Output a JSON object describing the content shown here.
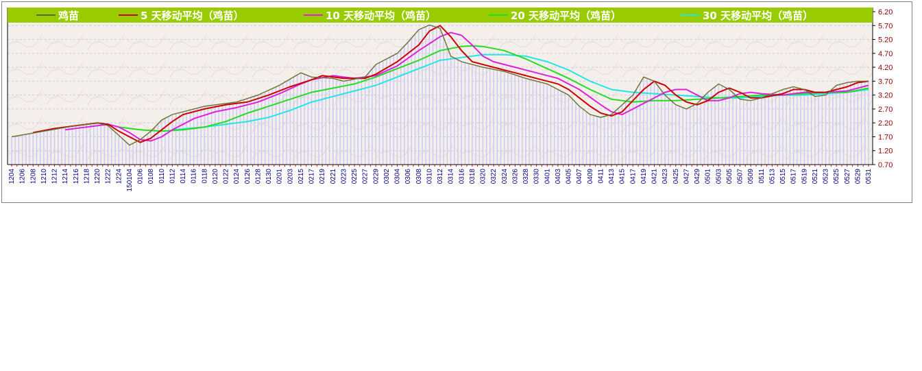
{
  "chart_data": {
    "type": "line",
    "colors": {
      "legend_bg": "#99cc00",
      "plot_bg": "#f4efea",
      "bar_fill": "#c8c8f4",
      "price_line": "#556b2f",
      "ma5": "#cc0000",
      "ma10": "#dd22dd",
      "ma20": "#22dd22",
      "ma30": "#22e6e6",
      "axis_text": "#8b0000",
      "xtick_text": "#000080"
    },
    "legend": [
      {
        "label": "鸡苗",
        "color": "#556b2f"
      },
      {
        "label": "5 天移动平均（鸡苗）",
        "color": "#cc0000"
      },
      {
        "label": "10 天移动平均（鸡苗）",
        "color": "#dd22dd"
      },
      {
        "label": "20 天移动平均（鸡苗）",
        "color": "#22dd22"
      },
      {
        "label": "30 天移动平均（鸡苗）",
        "color": "#22e6e6"
      }
    ],
    "y_ticks": [
      "6.20",
      "5.70",
      "5.20",
      "4.70",
      "4.20",
      "3.70",
      "3.20",
      "2.70",
      "2.20",
      "1.70",
      "1.20",
      "0.70"
    ],
    "ylim": [
      0.7,
      6.2
    ],
    "x_labels": [
      "1204",
      "1206",
      "1208",
      "1210",
      "1212",
      "1214",
      "1216",
      "1218",
      "1220",
      "1222",
      "1224",
      "150104",
      "0106",
      "0108",
      "0110",
      "0112",
      "0114",
      "0116",
      "0118",
      "0120",
      "0122",
      "0124",
      "0126",
      "0128",
      "0130",
      "0201",
      "0203",
      "0215",
      "0217",
      "0219",
      "0221",
      "0223",
      "0225",
      "0227",
      "0229",
      "0302",
      "0304",
      "0306",
      "0308",
      "0310",
      "0312",
      "0314",
      "0316",
      "0318",
      "0320",
      "0322",
      "0324",
      "0326",
      "0328",
      "0330",
      "0401",
      "0403",
      "0405",
      "0407",
      "0409",
      "0411",
      "0413",
      "0415",
      "0417",
      "0419",
      "0421",
      "0423",
      "0425",
      "0427",
      "0429",
      "0501",
      "0503",
      "0505",
      "0507",
      "0509",
      "0511",
      "0513",
      "0515",
      "0517",
      "0519",
      "0521",
      "0523",
      "0525",
      "0527",
      "0529",
      "0531"
    ],
    "series": [
      {
        "name": "鸡苗",
        "key": "price",
        "points": [
          [
            0,
            1.7
          ],
          [
            3,
            1.9
          ],
          [
            6,
            2.1
          ],
          [
            8,
            2.2
          ],
          [
            9,
            2.1
          ],
          [
            10,
            1.75
          ],
          [
            11,
            1.4
          ],
          [
            12,
            1.6
          ],
          [
            13,
            1.9
          ],
          [
            14,
            2.3
          ],
          [
            15,
            2.5
          ],
          [
            16,
            2.6
          ],
          [
            18,
            2.8
          ],
          [
            21,
            2.95
          ],
          [
            23,
            3.2
          ],
          [
            25,
            3.55
          ],
          [
            27,
            4.0
          ],
          [
            28,
            3.85
          ],
          [
            30,
            3.8
          ],
          [
            31,
            3.7
          ],
          [
            33,
            3.85
          ],
          [
            34,
            4.3
          ],
          [
            36,
            4.7
          ],
          [
            37,
            5.1
          ],
          [
            38,
            5.55
          ],
          [
            39,
            5.72
          ],
          [
            40,
            5.6
          ],
          [
            41,
            4.6
          ],
          [
            42,
            4.4
          ],
          [
            44,
            4.2
          ],
          [
            46,
            4.05
          ],
          [
            48,
            3.8
          ],
          [
            50,
            3.6
          ],
          [
            52,
            3.2
          ],
          [
            53,
            2.8
          ],
          [
            54,
            2.5
          ],
          [
            55,
            2.4
          ],
          [
            56,
            2.5
          ],
          [
            58,
            3.2
          ],
          [
            59,
            3.85
          ],
          [
            60,
            3.7
          ],
          [
            61,
            3.2
          ],
          [
            62,
            2.85
          ],
          [
            63,
            2.7
          ],
          [
            64,
            2.9
          ],
          [
            65,
            3.3
          ],
          [
            66,
            3.6
          ],
          [
            67,
            3.4
          ],
          [
            68,
            3.05
          ],
          [
            69,
            3.0
          ],
          [
            70,
            3.1
          ],
          [
            72,
            3.4
          ],
          [
            73,
            3.5
          ],
          [
            74,
            3.4
          ],
          [
            75,
            3.15
          ],
          [
            76,
            3.2
          ],
          [
            77,
            3.55
          ],
          [
            78,
            3.65
          ],
          [
            79,
            3.7
          ],
          [
            80,
            3.7
          ]
        ]
      },
      {
        "name": "5 天移动平均（鸡苗）",
        "key": "ma5",
        "points": [
          [
            2,
            1.85
          ],
          [
            4,
            2.0
          ],
          [
            6,
            2.1
          ],
          [
            8,
            2.2
          ],
          [
            9,
            2.15
          ],
          [
            10,
            1.9
          ],
          [
            11,
            1.7
          ],
          [
            12,
            1.5
          ],
          [
            13,
            1.65
          ],
          [
            14,
            1.95
          ],
          [
            15,
            2.25
          ],
          [
            16,
            2.5
          ],
          [
            18,
            2.7
          ],
          [
            20,
            2.85
          ],
          [
            22,
            2.95
          ],
          [
            24,
            3.2
          ],
          [
            26,
            3.5
          ],
          [
            28,
            3.75
          ],
          [
            29,
            3.9
          ],
          [
            31,
            3.8
          ],
          [
            33,
            3.8
          ],
          [
            34,
            3.95
          ],
          [
            36,
            4.4
          ],
          [
            38,
            5.0
          ],
          [
            39,
            5.5
          ],
          [
            40,
            5.7
          ],
          [
            41,
            5.3
          ],
          [
            42,
            4.8
          ],
          [
            43,
            4.4
          ],
          [
            45,
            4.2
          ],
          [
            47,
            4.0
          ],
          [
            49,
            3.8
          ],
          [
            51,
            3.6
          ],
          [
            52,
            3.4
          ],
          [
            53,
            3.1
          ],
          [
            54,
            2.8
          ],
          [
            55,
            2.55
          ],
          [
            56,
            2.45
          ],
          [
            57,
            2.6
          ],
          [
            58,
            3.0
          ],
          [
            59,
            3.4
          ],
          [
            60,
            3.7
          ],
          [
            61,
            3.55
          ],
          [
            62,
            3.2
          ],
          [
            63,
            2.95
          ],
          [
            64,
            2.85
          ],
          [
            65,
            3.0
          ],
          [
            66,
            3.3
          ],
          [
            67,
            3.45
          ],
          [
            68,
            3.3
          ],
          [
            69,
            3.1
          ],
          [
            70,
            3.1
          ],
          [
            72,
            3.25
          ],
          [
            73,
            3.4
          ],
          [
            74,
            3.4
          ],
          [
            75,
            3.3
          ],
          [
            76,
            3.3
          ],
          [
            78,
            3.5
          ],
          [
            79,
            3.65
          ],
          [
            80,
            3.7
          ]
        ]
      },
      {
        "name": "10 天移动平均（鸡苗）",
        "key": "ma10",
        "points": [
          [
            5,
            1.95
          ],
          [
            7,
            2.05
          ],
          [
            9,
            2.15
          ],
          [
            10,
            2.05
          ],
          [
            11,
            1.85
          ],
          [
            12,
            1.6
          ],
          [
            13,
            1.55
          ],
          [
            14,
            1.7
          ],
          [
            15,
            1.95
          ],
          [
            17,
            2.35
          ],
          [
            19,
            2.6
          ],
          [
            21,
            2.75
          ],
          [
            23,
            2.95
          ],
          [
            25,
            3.25
          ],
          [
            27,
            3.6
          ],
          [
            28,
            3.75
          ],
          [
            30,
            3.9
          ],
          [
            32,
            3.8
          ],
          [
            34,
            3.9
          ],
          [
            36,
            4.25
          ],
          [
            38,
            4.8
          ],
          [
            40,
            5.3
          ],
          [
            41,
            5.45
          ],
          [
            42,
            5.35
          ],
          [
            43,
            5.0
          ],
          [
            44,
            4.6
          ],
          [
            45,
            4.4
          ],
          [
            47,
            4.2
          ],
          [
            49,
            4.0
          ],
          [
            51,
            3.8
          ],
          [
            53,
            3.4
          ],
          [
            55,
            2.85
          ],
          [
            56,
            2.6
          ],
          [
            57,
            2.5
          ],
          [
            58,
            2.7
          ],
          [
            59,
            2.9
          ],
          [
            60,
            3.1
          ],
          [
            61,
            3.3
          ],
          [
            62,
            3.4
          ],
          [
            63,
            3.4
          ],
          [
            64,
            3.2
          ],
          [
            65,
            3.0
          ],
          [
            66,
            3.0
          ],
          [
            67,
            3.1
          ],
          [
            68,
            3.25
          ],
          [
            69,
            3.3
          ],
          [
            70,
            3.25
          ],
          [
            72,
            3.2
          ],
          [
            74,
            3.3
          ],
          [
            76,
            3.3
          ],
          [
            78,
            3.35
          ],
          [
            80,
            3.55
          ]
        ]
      },
      {
        "name": "20 天移动平均（鸡苗）",
        "key": "ma20",
        "points": [
          [
            10,
            2.05
          ],
          [
            12,
            1.95
          ],
          [
            14,
            1.9
          ],
          [
            16,
            1.95
          ],
          [
            18,
            2.05
          ],
          [
            20,
            2.25
          ],
          [
            22,
            2.55
          ],
          [
            24,
            2.8
          ],
          [
            26,
            3.05
          ],
          [
            28,
            3.3
          ],
          [
            30,
            3.45
          ],
          [
            32,
            3.6
          ],
          [
            34,
            3.85
          ],
          [
            36,
            4.15
          ],
          [
            38,
            4.45
          ],
          [
            40,
            4.8
          ],
          [
            42,
            4.95
          ],
          [
            43,
            4.97
          ],
          [
            44,
            4.95
          ],
          [
            46,
            4.8
          ],
          [
            48,
            4.5
          ],
          [
            50,
            4.15
          ],
          [
            52,
            3.8
          ],
          [
            54,
            3.4
          ],
          [
            56,
            3.05
          ],
          [
            58,
            2.95
          ],
          [
            60,
            3.0
          ],
          [
            62,
            3.0
          ],
          [
            64,
            3.05
          ],
          [
            66,
            3.1
          ],
          [
            68,
            3.15
          ],
          [
            70,
            3.2
          ],
          [
            72,
            3.2
          ],
          [
            74,
            3.25
          ],
          [
            76,
            3.3
          ],
          [
            78,
            3.3
          ],
          [
            80,
            3.45
          ]
        ]
      },
      {
        "name": "30 天移动平均（鸡苗）",
        "key": "ma30",
        "points": [
          [
            15,
            1.95
          ],
          [
            18,
            2.05
          ],
          [
            20,
            2.15
          ],
          [
            22,
            2.25
          ],
          [
            24,
            2.4
          ],
          [
            26,
            2.65
          ],
          [
            28,
            2.95
          ],
          [
            30,
            3.15
          ],
          [
            32,
            3.35
          ],
          [
            34,
            3.55
          ],
          [
            36,
            3.85
          ],
          [
            38,
            4.15
          ],
          [
            40,
            4.45
          ],
          [
            42,
            4.55
          ],
          [
            44,
            4.65
          ],
          [
            46,
            4.65
          ],
          [
            48,
            4.6
          ],
          [
            50,
            4.4
          ],
          [
            52,
            4.1
          ],
          [
            54,
            3.7
          ],
          [
            56,
            3.4
          ],
          [
            58,
            3.3
          ],
          [
            60,
            3.25
          ],
          [
            62,
            3.2
          ],
          [
            64,
            3.15
          ],
          [
            66,
            3.1
          ],
          [
            68,
            3.1
          ],
          [
            70,
            3.15
          ],
          [
            72,
            3.2
          ],
          [
            74,
            3.2
          ],
          [
            76,
            3.25
          ],
          [
            78,
            3.3
          ],
          [
            80,
            3.4
          ]
        ]
      }
    ]
  }
}
